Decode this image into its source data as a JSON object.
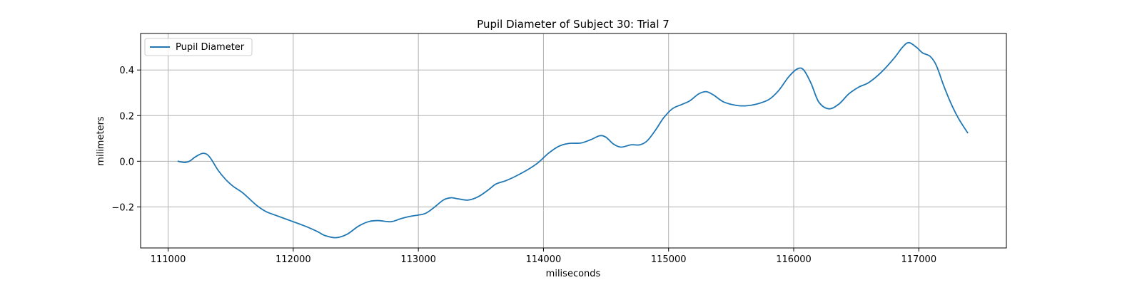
{
  "chart_data": {
    "type": "line",
    "title": "Pupil Diameter of Subject 30: Trial 7",
    "xlabel": "miliseconds",
    "ylabel": "milimeters",
    "xlim": [
      110780,
      117700
    ],
    "ylim": [
      -0.38,
      0.56
    ],
    "xticks": [
      111000,
      112000,
      113000,
      114000,
      115000,
      116000,
      117000
    ],
    "xtick_labels": [
      "111000",
      "112000",
      "113000",
      "114000",
      "115000",
      "116000",
      "117000"
    ],
    "yticks": [
      -0.2,
      0.0,
      0.2,
      0.4
    ],
    "ytick_labels": [
      "−0.2",
      "0.0",
      "0.2",
      "0.4"
    ],
    "grid": true,
    "legend_position": "upper left",
    "series": [
      {
        "name": "Pupil Diameter",
        "color": "#1f77b4",
        "points": [
          [
            111080,
            0.0
          ],
          [
            111130,
            -0.005
          ],
          [
            111170,
            0.0
          ],
          [
            111220,
            0.02
          ],
          [
            111280,
            0.035
          ],
          [
            111330,
            0.02
          ],
          [
            111400,
            -0.04
          ],
          [
            111460,
            -0.08
          ],
          [
            111520,
            -0.11
          ],
          [
            111600,
            -0.14
          ],
          [
            111700,
            -0.19
          ],
          [
            111780,
            -0.22
          ],
          [
            111850,
            -0.235
          ],
          [
            111950,
            -0.255
          ],
          [
            112050,
            -0.275
          ],
          [
            112120,
            -0.29
          ],
          [
            112200,
            -0.31
          ],
          [
            112250,
            -0.325
          ],
          [
            112340,
            -0.335
          ],
          [
            112430,
            -0.32
          ],
          [
            112520,
            -0.285
          ],
          [
            112600,
            -0.265
          ],
          [
            112680,
            -0.26
          ],
          [
            112780,
            -0.265
          ],
          [
            112870,
            -0.25
          ],
          [
            112950,
            -0.24
          ],
          [
            113050,
            -0.23
          ],
          [
            113120,
            -0.205
          ],
          [
            113200,
            -0.17
          ],
          [
            113260,
            -0.16
          ],
          [
            113320,
            -0.165
          ],
          [
            113400,
            -0.17
          ],
          [
            113480,
            -0.155
          ],
          [
            113560,
            -0.125
          ],
          [
            113620,
            -0.1
          ],
          [
            113700,
            -0.085
          ],
          [
            113780,
            -0.065
          ],
          [
            113880,
            -0.035
          ],
          [
            113960,
            -0.005
          ],
          [
            114040,
            0.035
          ],
          [
            114120,
            0.065
          ],
          [
            114200,
            0.078
          ],
          [
            114300,
            0.08
          ],
          [
            114380,
            0.095
          ],
          [
            114450,
            0.112
          ],
          [
            114500,
            0.105
          ],
          [
            114560,
            0.075
          ],
          [
            114620,
            0.062
          ],
          [
            114700,
            0.072
          ],
          [
            114770,
            0.072
          ],
          [
            114830,
            0.09
          ],
          [
            114900,
            0.14
          ],
          [
            114960,
            0.19
          ],
          [
            115030,
            0.23
          ],
          [
            115110,
            0.25
          ],
          [
            115170,
            0.265
          ],
          [
            115240,
            0.295
          ],
          [
            115300,
            0.305
          ],
          [
            115360,
            0.29
          ],
          [
            115440,
            0.26
          ],
          [
            115540,
            0.245
          ],
          [
            115620,
            0.243
          ],
          [
            115700,
            0.25
          ],
          [
            115800,
            0.27
          ],
          [
            115880,
            0.31
          ],
          [
            115960,
            0.37
          ],
          [
            116030,
            0.405
          ],
          [
            116080,
            0.4
          ],
          [
            116140,
            0.34
          ],
          [
            116200,
            0.26
          ],
          [
            116280,
            0.23
          ],
          [
            116360,
            0.25
          ],
          [
            116440,
            0.295
          ],
          [
            116520,
            0.325
          ],
          [
            116600,
            0.345
          ],
          [
            116700,
            0.39
          ],
          [
            116800,
            0.45
          ],
          [
            116870,
            0.5
          ],
          [
            116920,
            0.52
          ],
          [
            116980,
            0.5
          ],
          [
            117030,
            0.475
          ],
          [
            117090,
            0.46
          ],
          [
            117140,
            0.42
          ],
          [
            117200,
            0.33
          ],
          [
            117260,
            0.25
          ],
          [
            117320,
            0.185
          ],
          [
            117390,
            0.125
          ]
        ]
      }
    ]
  }
}
